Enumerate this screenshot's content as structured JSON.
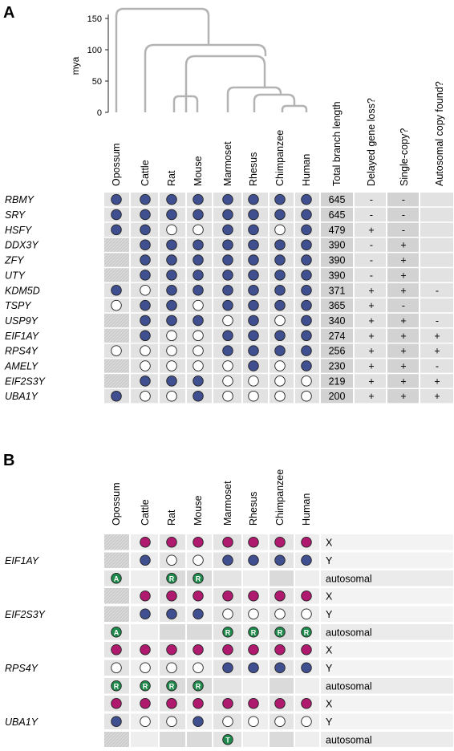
{
  "panel_a": {
    "label": "A",
    "axis": {
      "unit": "mya",
      "ticks": [
        "0",
        "50",
        "100",
        "150"
      ]
    },
    "species": [
      "Opossum",
      "Cattle",
      "Rat",
      "Mouse",
      "Marmoset",
      "Rhesus",
      "Chimpanzee",
      "Human"
    ],
    "extra_headers": [
      "Total branch length",
      "Delayed gene loss?",
      "Single-copy?",
      "Autosomal copy found?"
    ],
    "genes": [
      {
        "name": "RBMY",
        "cells": [
          "F",
          "F",
          "F",
          "F",
          "F",
          "F",
          "F",
          "F"
        ],
        "length": "645",
        "delayed": "-",
        "single": "-",
        "auto": ""
      },
      {
        "name": "SRY",
        "cells": [
          "F",
          "F",
          "F",
          "F",
          "F",
          "F",
          "F",
          "F"
        ],
        "length": "645",
        "delayed": "-",
        "single": "-",
        "auto": ""
      },
      {
        "name": "HSFY",
        "cells": [
          "F",
          "F",
          "O",
          "O",
          "F",
          "F",
          "O",
          "F"
        ],
        "length": "479",
        "delayed": "+",
        "single": "-",
        "auto": ""
      },
      {
        "name": "DDX3Y",
        "cells": [
          "-",
          "F",
          "F",
          "F",
          "F",
          "F",
          "F",
          "F"
        ],
        "length": "390",
        "delayed": "-",
        "single": "+",
        "auto": ""
      },
      {
        "name": "ZFY",
        "cells": [
          "-",
          "F",
          "F",
          "F",
          "F",
          "F",
          "F",
          "F"
        ],
        "length": "390",
        "delayed": "-",
        "single": "+",
        "auto": ""
      },
      {
        "name": "UTY",
        "cells": [
          "-",
          "F",
          "F",
          "F",
          "F",
          "F",
          "F",
          "F"
        ],
        "length": "390",
        "delayed": "-",
        "single": "+",
        "auto": ""
      },
      {
        "name": "KDM5D",
        "cells": [
          "F",
          "O",
          "F",
          "F",
          "F",
          "F",
          "F",
          "F"
        ],
        "length": "371",
        "delayed": "+",
        "single": "+",
        "auto": "-"
      },
      {
        "name": "TSPY",
        "cells": [
          "O",
          "F",
          "F",
          "O",
          "F",
          "F",
          "F",
          "F"
        ],
        "length": "365",
        "delayed": "+",
        "single": "-",
        "auto": ""
      },
      {
        "name": "USP9Y",
        "cells": [
          "-",
          "F",
          "F",
          "F",
          "O",
          "F",
          "O",
          "F"
        ],
        "length": "340",
        "delayed": "+",
        "single": "+",
        "auto": "-"
      },
      {
        "name": "EIF1AY",
        "cells": [
          "-",
          "F",
          "O",
          "O",
          "F",
          "F",
          "F",
          "F"
        ],
        "length": "274",
        "delayed": "+",
        "single": "+",
        "auto": "+"
      },
      {
        "name": "RPS4Y",
        "cells": [
          "O",
          "O",
          "O",
          "O",
          "F",
          "F",
          "F",
          "F"
        ],
        "length": "256",
        "delayed": "+",
        "single": "+",
        "auto": "+"
      },
      {
        "name": "AMELY",
        "cells": [
          "-",
          "O",
          "O",
          "O",
          "O",
          "F",
          "O",
          "F"
        ],
        "length": "230",
        "delayed": "+",
        "single": "+",
        "auto": "-"
      },
      {
        "name": "EIF2S3Y",
        "cells": [
          "-",
          "F",
          "F",
          "F",
          "O",
          "O",
          "O",
          "O"
        ],
        "length": "219",
        "delayed": "+",
        "single": "+",
        "auto": "+"
      },
      {
        "name": "UBA1Y",
        "cells": [
          "F",
          "O",
          "O",
          "F",
          "O",
          "O",
          "O",
          "O"
        ],
        "length": "200",
        "delayed": "+",
        "single": "+",
        "auto": "+"
      }
    ]
  },
  "panel_b": {
    "label": "B",
    "species": [
      "Opossum",
      "Cattle",
      "Rat",
      "Mouse",
      "Marmoset",
      "Rhesus",
      "Chimpanzee",
      "Human"
    ],
    "row_labels": [
      "X",
      "Y",
      "autosomal"
    ],
    "genes": [
      {
        "name": "EIF1AY",
        "x": [
          "-",
          "X",
          "X",
          "X",
          "X",
          "X",
          "X",
          "X"
        ],
        "y": [
          "-",
          "F",
          "O",
          "O",
          "F",
          "F",
          "F",
          "F"
        ],
        "auto": [
          "A",
          "",
          "R",
          "R",
          "",
          "",
          "",
          ""
        ]
      },
      {
        "name": "EIF2S3Y",
        "x": [
          "-",
          "X",
          "X",
          "X",
          "X",
          "X",
          "X",
          "X"
        ],
        "y": [
          "-",
          "F",
          "F",
          "F",
          "O",
          "O",
          "O",
          "O"
        ],
        "auto": [
          "A",
          "",
          "",
          "",
          "R",
          "R",
          "R",
          "R"
        ]
      },
      {
        "name": "RPS4Y",
        "x": [
          "X",
          "X",
          "X",
          "X",
          "X",
          "X",
          "X",
          "X"
        ],
        "y": [
          "O",
          "O",
          "O",
          "O",
          "F",
          "F",
          "F",
          "F"
        ],
        "auto": [
          "R",
          "R",
          "R",
          "R",
          "",
          "",
          "",
          ""
        ]
      },
      {
        "name": "UBA1Y",
        "x": [
          "X",
          "X",
          "X",
          "X",
          "X",
          "X",
          "X",
          "X"
        ],
        "y": [
          "F",
          "O",
          "O",
          "F",
          "O",
          "O",
          "O",
          "O"
        ],
        "auto": [
          "",
          "",
          "",
          "",
          "T",
          "",
          "",
          ""
        ]
      }
    ]
  },
  "colors": {
    "y_present": "#3f4f8f",
    "x_present": "#b01a6e",
    "autosomal": "#1f8a4c",
    "bg_a": "#e2e2e2",
    "bg_b": "#ebebeb",
    "tree": "#b3b3b3"
  }
}
